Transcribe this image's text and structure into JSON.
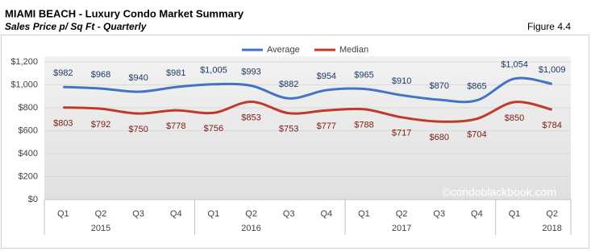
{
  "chart_data": {
    "type": "line",
    "title": "MIAMI BEACH - Luxury Condo Market Summary",
    "subtitle": "Sales Price p/ Sq Ft - Quarterly",
    "figure_label": "Figure 4.4",
    "watermark": "©condoblackbook.com",
    "categories": [
      "Q1",
      "Q2",
      "Q3",
      "Q4",
      "Q1",
      "Q2",
      "Q3",
      "Q4",
      "Q1",
      "Q2",
      "Q3",
      "Q4",
      "Q1",
      "Q2"
    ],
    "year_groups": [
      "2015",
      "2016",
      "2017",
      "2018"
    ],
    "series": [
      {
        "name": "Average",
        "color": "#4472c4",
        "label_color": "#1f3864",
        "values": [
          982,
          968,
          940,
          981,
          1005,
          993,
          882,
          954,
          965,
          910,
          870,
          865,
          1054,
          1009
        ],
        "value_labels": [
          "$982",
          "$968",
          "$940",
          "$981",
          "$1,005",
          "$993",
          "$882",
          "$954",
          "$965",
          "$910",
          "$870",
          "$865",
          "$1,054",
          "$1,009"
        ]
      },
      {
        "name": "Median",
        "color": "#c0392b",
        "label_color": "#7b1c14",
        "values": [
          803,
          792,
          750,
          778,
          756,
          853,
          753,
          777,
          788,
          717,
          680,
          704,
          850,
          784
        ],
        "value_labels": [
          "$803",
          "$792",
          "$750",
          "$778",
          "$756",
          "$853",
          "$753",
          "$777",
          "$788",
          "$717",
          "$680",
          "$704",
          "$850",
          "$784"
        ]
      }
    ],
    "ylim": [
      0,
      1200
    ],
    "yticks": [
      {
        "value": 0,
        "label": "$0"
      },
      {
        "value": 200,
        "label": "$200"
      },
      {
        "value": 400,
        "label": "$400"
      },
      {
        "value": 600,
        "label": "$600"
      },
      {
        "value": 800,
        "label": "$800"
      },
      {
        "value": 1000,
        "label": "$1,000"
      },
      {
        "value": 1200,
        "label": "$1,200"
      }
    ],
    "grid": true,
    "smooth": true,
    "legend": "top"
  }
}
